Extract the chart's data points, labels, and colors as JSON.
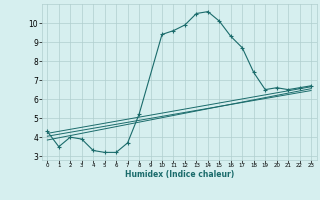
{
  "xlabel": "Humidex (Indice chaleur)",
  "bg_color": "#d6efef",
  "line_color": "#1a6b6b",
  "grid_color": "#b0cece",
  "curve1_x": [
    0,
    1,
    2,
    3,
    4,
    5,
    6,
    7,
    8,
    10,
    11,
    12,
    13,
    14,
    15,
    16,
    17,
    18,
    19,
    20,
    21,
    22,
    23
  ],
  "curve1_y": [
    4.3,
    3.5,
    4.0,
    3.9,
    3.3,
    3.2,
    3.2,
    3.7,
    5.2,
    9.4,
    9.6,
    9.9,
    10.5,
    10.6,
    10.1,
    9.3,
    8.7,
    7.4,
    6.5,
    6.6,
    6.5,
    6.6,
    6.7
  ],
  "line1_x": [
    0,
    23
  ],
  "line1_y": [
    4.2,
    6.65
  ],
  "line2_x": [
    0,
    23
  ],
  "line2_y": [
    3.85,
    6.55
  ],
  "line3_x": [
    0,
    23
  ],
  "line3_y": [
    4.05,
    6.45
  ],
  "xlim": [
    -0.5,
    23.5
  ],
  "ylim": [
    2.8,
    11.0
  ],
  "yticks": [
    3,
    4,
    5,
    6,
    7,
    8,
    9,
    10
  ],
  "xticks": [
    0,
    1,
    2,
    3,
    4,
    5,
    6,
    7,
    8,
    9,
    10,
    11,
    12,
    13,
    14,
    15,
    16,
    17,
    18,
    19,
    20,
    21,
    22,
    23
  ]
}
